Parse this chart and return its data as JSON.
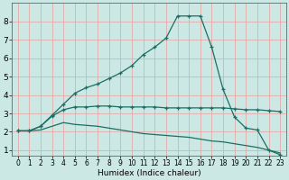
{
  "title": "",
  "xlabel": "Humidex (Indice chaleur)",
  "bg_color": "#cce8e4",
  "grid_color": "#e8a0a0",
  "line_color": "#1a6e63",
  "xlim": [
    -0.5,
    23.5
  ],
  "ylim": [
    0.7,
    9.0
  ],
  "yticks": [
    1,
    2,
    3,
    4,
    5,
    6,
    7,
    8
  ],
  "xticks": [
    0,
    1,
    2,
    3,
    4,
    5,
    6,
    7,
    8,
    9,
    10,
    11,
    12,
    13,
    14,
    15,
    16,
    17,
    18,
    19,
    20,
    21,
    22,
    23
  ],
  "line1_x": [
    0,
    1,
    2,
    3,
    4,
    5,
    6,
    7,
    8,
    9,
    10,
    11,
    12,
    13,
    14,
    15,
    16,
    17,
    18,
    19,
    20,
    21,
    22,
    23
  ],
  "line1_y": [
    2.05,
    2.05,
    2.3,
    2.9,
    3.5,
    4.1,
    4.4,
    4.6,
    4.9,
    5.2,
    5.6,
    6.2,
    6.6,
    7.1,
    8.3,
    8.3,
    8.3,
    6.6,
    4.3,
    2.8,
    2.2,
    2.1,
    1.0,
    0.75
  ],
  "line2_x": [
    0,
    1,
    2,
    3,
    4,
    5,
    6,
    7,
    8,
    9,
    10,
    11,
    12,
    13,
    14,
    15,
    16,
    17,
    18,
    19,
    20,
    21,
    22,
    23
  ],
  "line2_y": [
    2.05,
    2.05,
    2.3,
    2.85,
    3.2,
    3.35,
    3.35,
    3.4,
    3.4,
    3.35,
    3.35,
    3.35,
    3.35,
    3.3,
    3.3,
    3.3,
    3.3,
    3.3,
    3.3,
    3.25,
    3.2,
    3.2,
    3.15,
    3.1
  ],
  "line3_x": [
    0,
    1,
    2,
    3,
    4,
    5,
    6,
    7,
    8,
    9,
    10,
    11,
    12,
    13,
    14,
    15,
    16,
    17,
    18,
    19,
    20,
    21,
    22,
    23
  ],
  "line3_y": [
    2.05,
    2.05,
    2.1,
    2.3,
    2.5,
    2.4,
    2.35,
    2.3,
    2.2,
    2.1,
    2.0,
    1.9,
    1.85,
    1.8,
    1.75,
    1.7,
    1.6,
    1.5,
    1.45,
    1.35,
    1.25,
    1.15,
    1.0,
    0.85
  ]
}
